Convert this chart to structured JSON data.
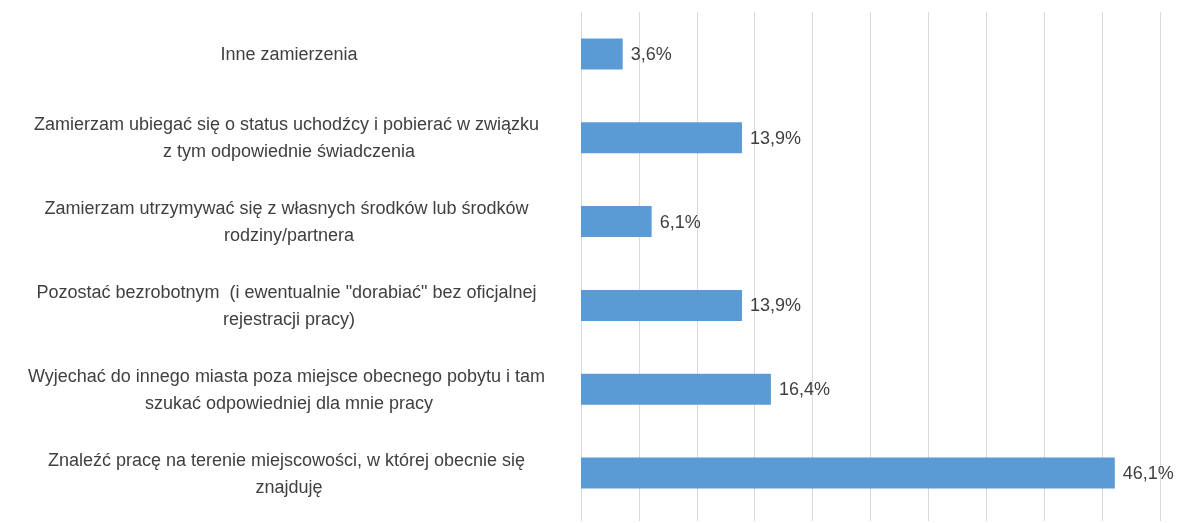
{
  "chart_data": {
    "type": "bar",
    "orientation": "horizontal",
    "categories": [
      "Inne zamierzenia",
      "Zamierzam ubiegać się o status uchodźcy i pobierać w związku z tym odpowiednie świadczenia",
      "Zamierzam utrzymywać się z własnych środków lub środków rodziny/partnera",
      "Pozostać bezrobotnym  (i ewentualnie \"dorabiać\" bez oficjalnej rejestracji pracy)",
      "Wyjechać do innego miasta poza miejsce obecnego pobytu i tam szukać odpowiedniej dla mnie pracy",
      "Znaleźć pracę na terenie miejscowości, w której obecnie się znajduję"
    ],
    "values": [
      3.6,
      13.9,
      6.1,
      13.9,
      16.4,
      46.1
    ],
    "value_labels": [
      "3,6%",
      "13,9%",
      "6,1%",
      "13,9%",
      "16,4%",
      "46,1%"
    ],
    "color": "#5b9bd5",
    "xlim": [
      0,
      50
    ],
    "xticks": [
      {
        "value": 0,
        "label": null
      },
      {
        "value": 5,
        "label": null
      },
      {
        "value": 10,
        "label": null
      },
      {
        "value": 15,
        "label": null
      },
      {
        "value": 20,
        "label": null
      },
      {
        "value": 25,
        "label": null
      },
      {
        "value": 30,
        "label": null
      },
      {
        "value": 35,
        "label": null
      },
      {
        "value": 40,
        "label": null
      },
      {
        "value": 45,
        "label": null
      },
      {
        "value": 50,
        "label": null
      }
    ],
    "grid": "x",
    "tick_labels": "y"
  }
}
